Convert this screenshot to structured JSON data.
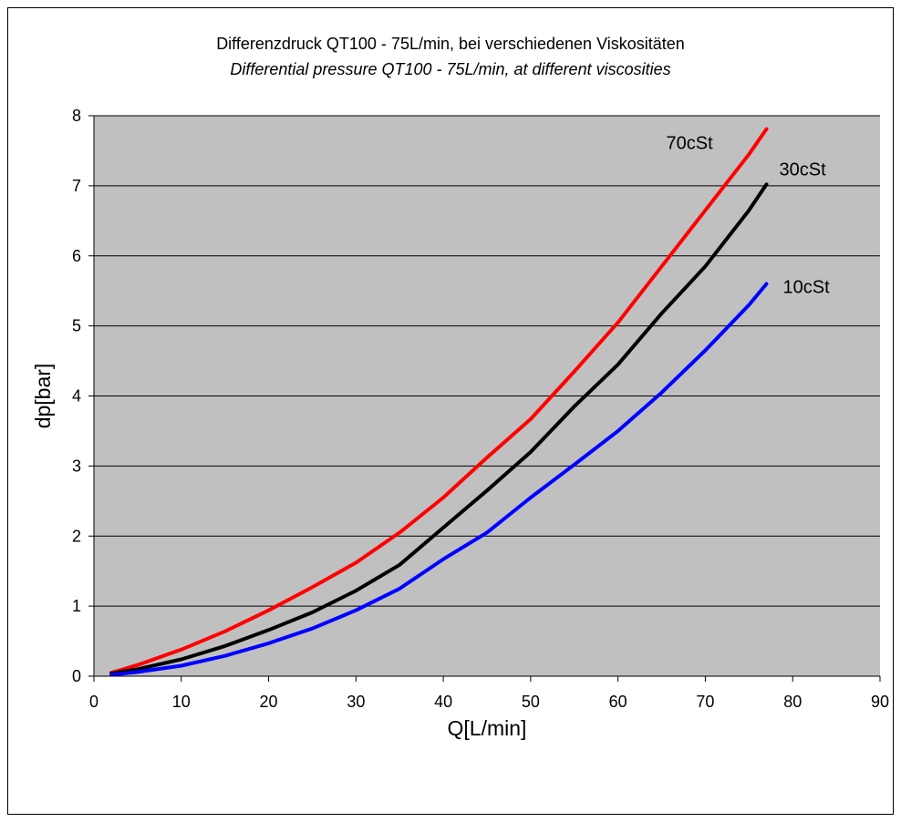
{
  "chart_data": {
    "type": "line",
    "title": "Differenzdruck QT100 - 75L/min, bei verschiedenen Viskositäten",
    "subtitle": "Differential pressure QT100 - 75L/min, at different viscosities",
    "xlabel": "Q[L/min]",
    "ylabel": "dp[bar]",
    "xlim": [
      0,
      90
    ],
    "ylim": [
      0,
      8
    ],
    "xticks": [
      "0",
      "10",
      "20",
      "30",
      "40",
      "50",
      "60",
      "70",
      "80",
      "90"
    ],
    "yticks": [
      "0",
      "1",
      "2",
      "3",
      "4",
      "5",
      "6",
      "7",
      "8"
    ],
    "grid": "horizontal",
    "plot_background": "#c0c0c0",
    "series": [
      {
        "name": "70cSt",
        "color": "#ff0000",
        "x": [
          2,
          5,
          10,
          15,
          20,
          25,
          30,
          35,
          40,
          45,
          50,
          55,
          60,
          65,
          70,
          75,
          77
        ],
        "y": [
          0.05,
          0.16,
          0.38,
          0.64,
          0.94,
          1.27,
          1.62,
          2.05,
          2.55,
          3.12,
          3.67,
          4.35,
          5.05,
          5.85,
          6.65,
          7.45,
          7.81
        ]
      },
      {
        "name": "30cSt",
        "color": "#000000",
        "x": [
          2,
          5,
          10,
          15,
          20,
          25,
          30,
          35,
          40,
          45,
          50,
          55,
          60,
          65,
          70,
          75,
          77
        ],
        "y": [
          0.04,
          0.1,
          0.24,
          0.43,
          0.66,
          0.91,
          1.22,
          1.59,
          2.12,
          2.65,
          3.2,
          3.85,
          4.45,
          5.18,
          5.85,
          6.65,
          7.02
        ]
      },
      {
        "name": "10cSt",
        "color": "#0000ff",
        "x": [
          2,
          5,
          10,
          15,
          20,
          25,
          30,
          35,
          40,
          45,
          50,
          55,
          60,
          65,
          70,
          75,
          77
        ],
        "y": [
          0.02,
          0.06,
          0.15,
          0.29,
          0.47,
          0.68,
          0.94,
          1.25,
          1.67,
          2.05,
          2.55,
          3.02,
          3.5,
          4.05,
          4.65,
          5.3,
          5.6
        ]
      }
    ]
  }
}
